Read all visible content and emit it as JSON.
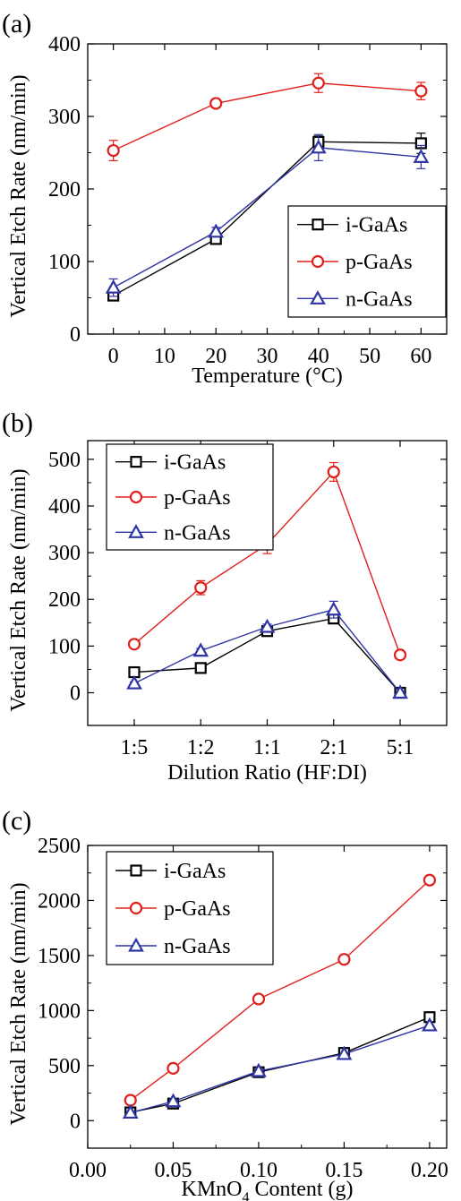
{
  "chart_data": [
    {
      "panel_label": "(a)",
      "type": "line",
      "xlabel": "Temperature (°C)",
      "ylabel": "Vertical Etch Rate (nm/min)",
      "xlim": [
        -5,
        65
      ],
      "ylim": [
        0,
        400
      ],
      "x_ticks": [
        0,
        10,
        20,
        30,
        40,
        50,
        60
      ],
      "x_tick_labels": [
        "0",
        "10",
        "20",
        "30",
        "40",
        "50",
        "60"
      ],
      "y_ticks": [
        0,
        100,
        200,
        300,
        400
      ],
      "y_tick_labels": [
        "0",
        "100",
        "200",
        "300",
        "400"
      ],
      "legend_position": "bottom-right",
      "series": [
        {
          "name": "i-GaAs",
          "marker": "square",
          "color": "#000000",
          "x": [
            0,
            20,
            40,
            60
          ],
          "y": [
            53,
            131,
            265,
            263
          ],
          "err": [
            5,
            5,
            8,
            14
          ]
        },
        {
          "name": "p-GaAs",
          "marker": "circle",
          "color": "#e0201b",
          "x": [
            0,
            20,
            40,
            60
          ],
          "y": [
            253,
            318,
            346,
            335
          ],
          "err": [
            14,
            6,
            13,
            12
          ]
        },
        {
          "name": "n-GaAs",
          "marker": "triangle",
          "color": "#2f35a4",
          "x": [
            0,
            20,
            40,
            60
          ],
          "y": [
            64,
            141,
            257,
            244
          ],
          "err": [
            12,
            6,
            18,
            16
          ]
        }
      ]
    },
    {
      "panel_label": "(b)",
      "type": "line",
      "xlabel": "Dilution Ratio (HF:DI)",
      "ylabel": "Vertical Etch Rate (nm/min)",
      "categories": [
        "1:5",
        "1:2",
        "1:1",
        "2:1",
        "5:1"
      ],
      "ylim": [
        -70,
        540
      ],
      "y_ticks": [
        0,
        100,
        200,
        300,
        400,
        500
      ],
      "y_tick_labels": [
        "0",
        "100",
        "200",
        "300",
        "400",
        "500"
      ],
      "legend_position": "top-left",
      "series": [
        {
          "name": "i-GaAs",
          "marker": "square",
          "color": "#000000",
          "values": [
            44,
            53,
            132,
            159,
            0
          ],
          "err": [
            4,
            4,
            6,
            8,
            2
          ]
        },
        {
          "name": "p-GaAs",
          "marker": "circle",
          "color": "#e0201b",
          "values": [
            104,
            225,
            318,
            473,
            81
          ],
          "err": [
            5,
            15,
            20,
            20,
            4
          ]
        },
        {
          "name": "n-GaAs",
          "marker": "triangle",
          "color": "#2f35a4",
          "values": [
            20,
            90,
            141,
            178,
            0
          ],
          "err": [
            3,
            5,
            6,
            18,
            2
          ]
        }
      ]
    },
    {
      "panel_label": "(c)",
      "type": "line",
      "xlabel_main": "KMnO",
      "xlabel_sub": "4",
      "xlabel_tail": " Content (g)",
      "ylabel": "Vertical Etch Rate (nm/min)",
      "xlim": [
        0.0,
        0.21
      ],
      "ylim": [
        -250,
        2500
      ],
      "x_ticks": [
        0.0,
        0.05,
        0.1,
        0.15,
        0.2
      ],
      "x_tick_labels": [
        "0.00",
        "0.05",
        "0.10",
        "0.15",
        "0.20"
      ],
      "y_ticks": [
        0,
        500,
        1000,
        1500,
        2000,
        2500
      ],
      "y_tick_labels": [
        "0",
        "500",
        "1000",
        "1500",
        "2000",
        "2500"
      ],
      "legend_position": "top-left",
      "series": [
        {
          "name": "i-GaAs",
          "marker": "square",
          "color": "#000000",
          "x": [
            0.025,
            0.05,
            0.1,
            0.15,
            0.2
          ],
          "y": [
            75,
            155,
            440,
            615,
            940
          ],
          "err": [
            0,
            0,
            0,
            0,
            0
          ]
        },
        {
          "name": "p-GaAs",
          "marker": "circle",
          "color": "#e0201b",
          "x": [
            0.025,
            0.05,
            0.1,
            0.15,
            0.2
          ],
          "y": [
            185,
            475,
            1105,
            1465,
            2185
          ],
          "err": [
            0,
            0,
            0,
            0,
            0
          ]
        },
        {
          "name": "n-GaAs",
          "marker": "triangle",
          "color": "#2f35a4",
          "x": [
            0.025,
            0.05,
            0.1,
            0.15,
            0.2
          ],
          "y": [
            72,
            175,
            450,
            605,
            865
          ],
          "err": [
            0,
            0,
            0,
            0,
            0
          ]
        }
      ]
    }
  ]
}
